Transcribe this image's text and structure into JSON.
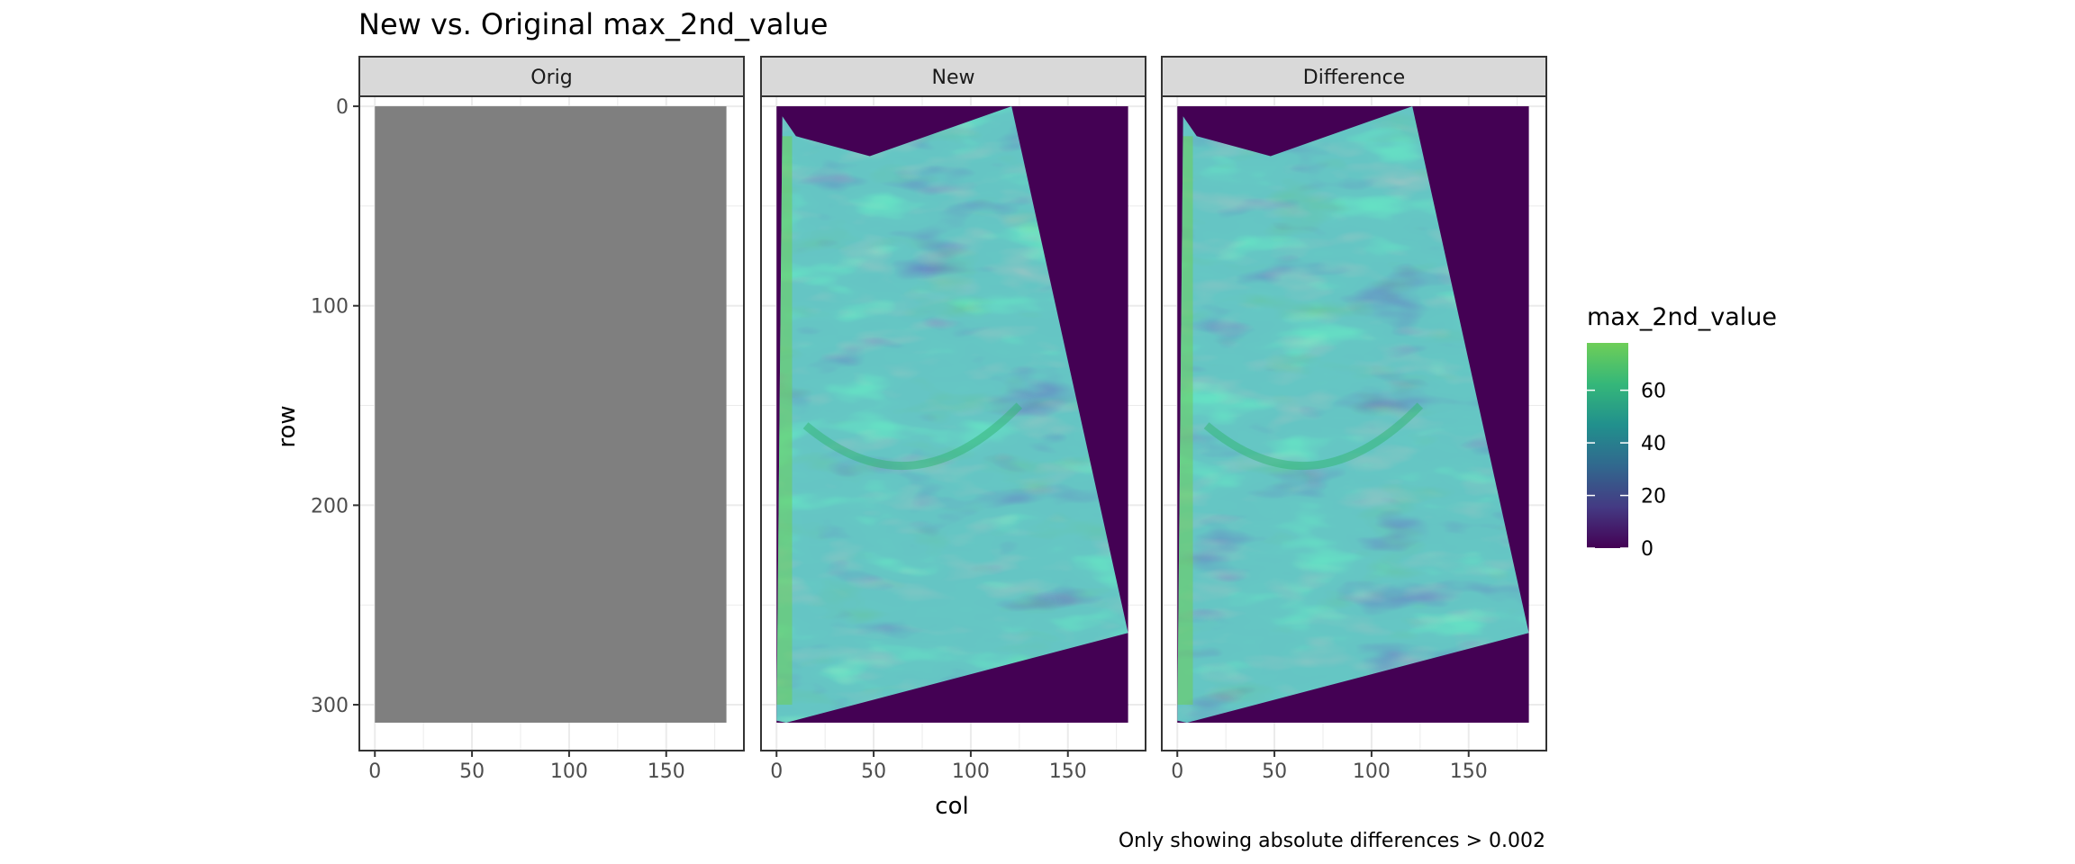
{
  "chart_data": {
    "type": "heatmap",
    "title": "New vs. Original max_2nd_value",
    "xlabel": "col",
    "ylabel": "row",
    "caption": "Only showing absolute differences > 0.002",
    "facets": [
      {
        "label": "Orig",
        "fill": "uniform",
        "fill_color": "#7f7f7f"
      },
      {
        "label": "New",
        "fill": "field"
      },
      {
        "label": "Difference",
        "fill": "field"
      }
    ],
    "x_ticks": [
      0,
      50,
      100,
      150
    ],
    "y_ticks": [
      0,
      100,
      200,
      300
    ],
    "xlim": [
      -8,
      190
    ],
    "ylim": [
      -5,
      323
    ],
    "y_reversed": true,
    "grid": true,
    "raster_extent": {
      "col": [
        0,
        181
      ],
      "row": [
        0,
        309
      ]
    },
    "field_region_polygon": [
      [
        3,
        5
      ],
      [
        10,
        15
      ],
      [
        48,
        25
      ],
      [
        121,
        0
      ],
      [
        181,
        264
      ],
      [
        5,
        309
      ],
      [
        0,
        308
      ]
    ],
    "field_value_range": [
      20,
      75
    ],
    "background_value": 0,
    "legend": {
      "title": "max_2nd_value",
      "ticks": [
        0,
        20,
        40,
        60
      ],
      "range": [
        0,
        78
      ],
      "position": "right",
      "colormap": "viridis"
    },
    "colors": {
      "viridis_stops": [
        "#440154",
        "#443a83",
        "#31688e",
        "#21908d",
        "#35b779",
        "#6ece58"
      ],
      "panel_border": "#333333",
      "strip_fill": "#d9d9d9",
      "grid": "#ebebeb"
    }
  }
}
